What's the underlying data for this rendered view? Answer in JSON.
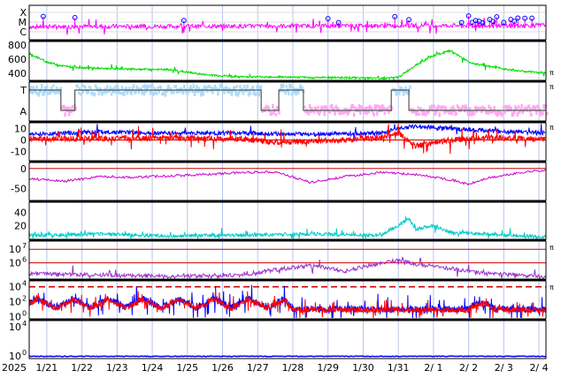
{
  "figure": {
    "year_label": "2025",
    "x_ticks": [
      "1/21",
      "1/22",
      "1/23",
      "1/24",
      "1/25",
      "1/26",
      "1/27",
      "1/28",
      "1/29",
      "1/30",
      "1/31",
      "2/ 1",
      "2/ 2",
      "2/ 3",
      "2/ 4"
    ]
  },
  "chart_data": [
    {
      "type": "line",
      "panel": "xray-flare-class",
      "y_tick_labels": [
        "X",
        "M",
        "C"
      ],
      "colors": {
        "series": "#ff00ff",
        "markers": "#0000ff"
      },
      "flare_marker_days": [
        0.4,
        1.3,
        4.4,
        8.5,
        8.8,
        10.4,
        10.8,
        12.3,
        12.5,
        12.6,
        12.7,
        12.8,
        12.9,
        13.1,
        13.2,
        13.3,
        13.5,
        13.7,
        13.8,
        13.9,
        14.1,
        14.3
      ]
    },
    {
      "type": "line",
      "panel": "solar-wind-speed",
      "y_ticks": [
        400,
        600,
        800
      ],
      "ylim": [
        300,
        850
      ],
      "right_label": "π",
      "colors": {
        "series": "#00dd00"
      },
      "x_days": [
        0,
        0.5,
        1,
        1.5,
        2,
        3,
        4,
        5,
        6,
        7,
        8,
        9,
        10,
        10.5,
        11,
        11.5,
        12,
        12.5,
        13,
        14,
        14.5
      ],
      "values": [
        680,
        560,
        500,
        480,
        470,
        460,
        450,
        380,
        350,
        350,
        340,
        340,
        330,
        340,
        520,
        650,
        720,
        560,
        500,
        430,
        410
      ]
    },
    {
      "type": "line",
      "panel": "imf-sector",
      "y_tick_labels": [
        "T",
        "A"
      ],
      "right_label": "π",
      "colors": {
        "toward": "#aaddff",
        "away": "#ffaaee",
        "sector": "#555555"
      }
    },
    {
      "type": "line",
      "panel": "imf-components",
      "y_ticks": [
        10,
        0,
        -10
      ],
      "ylim": [
        -18,
        15
      ],
      "right_label": "π",
      "series": [
        {
          "color": "#0000ff",
          "x_days": [
            0,
            2,
            4,
            6,
            8,
            10,
            10.5,
            11,
            12,
            13,
            14.5
          ],
          "values": [
            5,
            7,
            6,
            6,
            5,
            6,
            10,
            12,
            10,
            8,
            6
          ]
        },
        {
          "color": "#ff0000",
          "x_days": [
            0,
            2,
            4,
            6,
            7,
            8,
            9,
            10,
            10.5,
            11,
            12,
            13,
            14.5
          ],
          "values": [
            1,
            1,
            2,
            1,
            -2,
            -1,
            0,
            2,
            6,
            -5,
            0,
            2,
            1
          ]
        }
      ]
    },
    {
      "type": "line",
      "panel": "dst-index",
      "y_ticks": [
        0,
        -50
      ],
      "ylim": [
        -80,
        15
      ],
      "colors": {
        "series": "#cc00cc",
        "zero": "#cc0000"
      },
      "x_days": [
        0,
        1,
        2,
        3,
        4,
        5,
        6,
        7,
        8,
        9,
        10,
        11,
        12,
        12.5,
        13,
        14,
        14.5
      ],
      "values": [
        -25,
        -32,
        -20,
        -22,
        -18,
        -15,
        -10,
        -8,
        -35,
        -20,
        -10,
        -15,
        -28,
        -40,
        -25,
        -10,
        -5
      ]
    },
    {
      "type": "line",
      "panel": "kp-or-ae",
      "y_ticks": [
        40,
        20
      ],
      "ylim": [
        0,
        55
      ],
      "colors": {
        "series": "#00cccc"
      },
      "x_days": [
        0,
        2,
        4,
        6,
        8,
        10,
        10.8,
        11,
        11.5,
        12,
        13,
        14,
        14.5
      ],
      "values": [
        6,
        8,
        5,
        6,
        8,
        6,
        30,
        15,
        20,
        10,
        8,
        5,
        4
      ]
    },
    {
      "type": "line",
      "panel": "electron-flux",
      "y_tick_labels": [
        "10",
        "10"
      ],
      "y_tick_exponents": [
        "7",
        "6"
      ],
      "right_label": "π",
      "colors": {
        "series": "#9933cc",
        "threshold": "#cc0000"
      },
      "x_days": [
        0,
        2,
        4,
        6,
        7,
        8,
        9,
        10,
        10.5,
        11,
        12,
        13,
        14.5
      ],
      "values_log10": [
        5.2,
        5.1,
        5.0,
        5.1,
        5.5,
        5.8,
        5.4,
        6.0,
        6.2,
        5.9,
        5.6,
        5.2,
        5.0
      ]
    },
    {
      "type": "line",
      "panel": "proton-electron-flux",
      "y_tick_labels": [
        "10",
        "10",
        "10"
      ],
      "y_tick_exponents": [
        "4",
        "2",
        "0"
      ],
      "right_label": "π",
      "colors": {
        "blue": "#0000ff",
        "red": "#ff0000",
        "threshold": "#cc0000"
      }
    },
    {
      "type": "line",
      "panel": "proton-flux",
      "y_tick_labels": [
        "10",
        "10"
      ],
      "y_tick_exponents": [
        "4",
        "0"
      ],
      "colors": {
        "series": "#0000ff"
      }
    }
  ]
}
